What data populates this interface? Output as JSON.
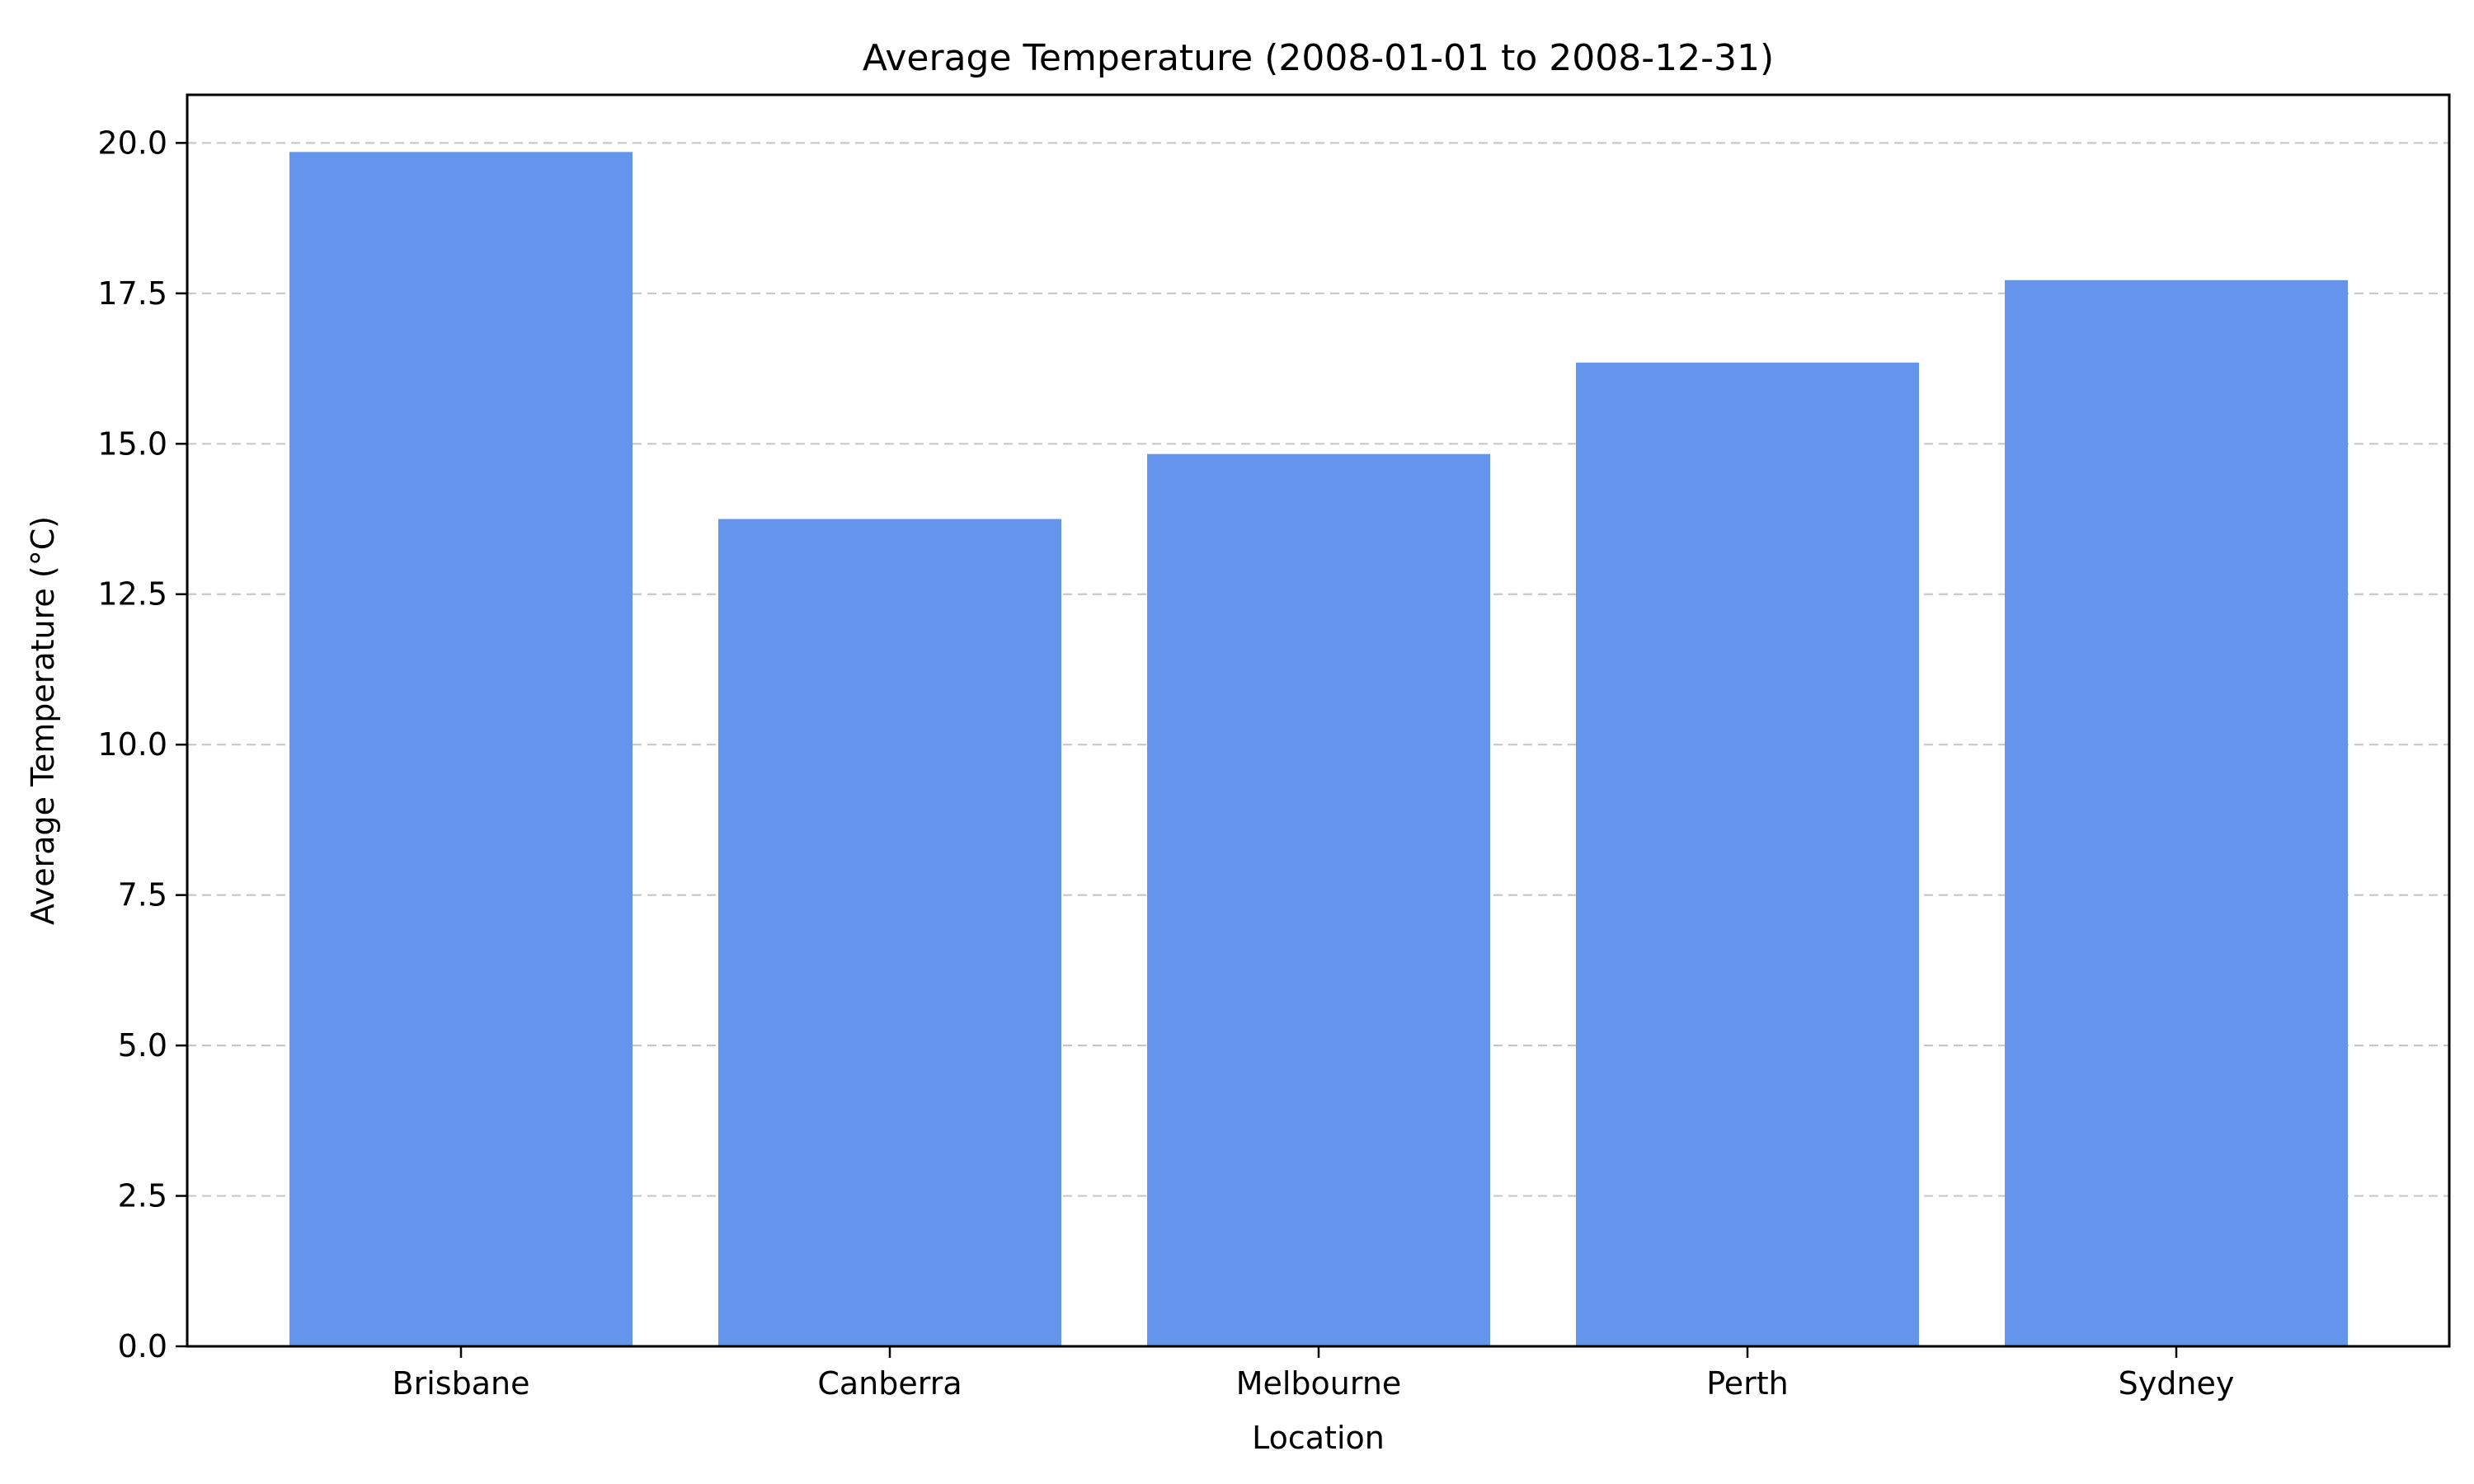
{
  "chart_data": {
    "type": "bar",
    "title": "Average Temperature (2008-01-01 to 2008-12-31)",
    "xlabel": "Location",
    "ylabel": "Average Temperature (°C)",
    "categories": [
      "Brisbane",
      "Canberra",
      "Melbourne",
      "Perth",
      "Sydney"
    ],
    "values": [
      19.85,
      13.75,
      14.83,
      16.35,
      17.72
    ],
    "ylim": [
      0,
      20.8
    ],
    "yticks": [
      0.0,
      2.5,
      5.0,
      7.5,
      10.0,
      12.5,
      15.0,
      17.5,
      20.0
    ],
    "ytick_labels": [
      "0.0",
      "2.5",
      "5.0",
      "7.5",
      "10.0",
      "12.5",
      "15.0",
      "17.5",
      "20.0"
    ],
    "grid": "y-dashed",
    "bar_color": "#6495ED",
    "grid_color": "#c8c8c8",
    "legend": "none"
  }
}
